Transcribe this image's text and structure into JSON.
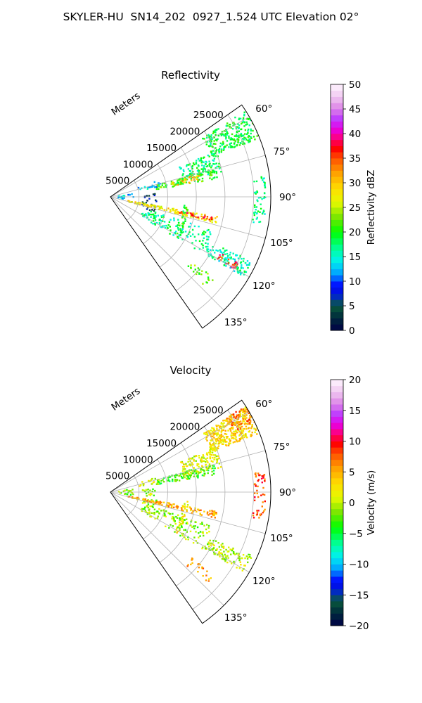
{
  "title": "SKYLER-HU  SN14_202  0927_1.524 UTC Elevation 02°",
  "chart_data": [
    {
      "type": "heatmap",
      "subtype": "polar-sector-radar-ppi",
      "title": "Reflectivity",
      "range_label": "Meters",
      "range_ticks": [
        "5000",
        "10000",
        "15000",
        "20000",
        "25000"
      ],
      "range_tick_values": [
        5000,
        10000,
        15000,
        20000,
        25000
      ],
      "rmax": 28000,
      "azimuth_ticks": [
        "60°",
        "75°",
        "90°",
        "105°",
        "120°",
        "135°"
      ],
      "azimuth_tick_values": [
        60,
        75,
        90,
        105,
        120,
        135
      ],
      "theta_range": [
        55,
        145
      ],
      "grid": true,
      "colorbar": {
        "label": "Reflectivity dBZ",
        "vmin": 0,
        "vmax": 50,
        "ticks": [
          "0",
          "5",
          "10",
          "15",
          "20",
          "25",
          "30",
          "35",
          "40",
          "45",
          "50"
        ],
        "tick_values": [
          0,
          5,
          10,
          15,
          20,
          25,
          30,
          35,
          40,
          45,
          50
        ]
      },
      "echo_regions": [
        {
          "az": [
            57,
            68
          ],
          "r": [
            19000,
            28000
          ],
          "value": 19,
          "density": 0.55
        },
        {
          "az": [
            66,
            77
          ],
          "r": [
            13000,
            20000
          ],
          "value": 18,
          "density": 0.45
        },
        {
          "az": [
            74,
            80
          ],
          "r": [
            8000,
            19000
          ],
          "value": 21,
          "density": 0.55
        },
        {
          "az": [
            75,
            79
          ],
          "r": [
            11000,
            16000
          ],
          "value": 30,
          "density": 0.5
        },
        {
          "az": [
            70,
            78
          ],
          "r": [
            5000,
            9000
          ],
          "value": 13,
          "density": 0.35
        },
        {
          "az": [
            78,
            96
          ],
          "r": [
            1000,
            4000
          ],
          "value": 13,
          "density": 0.35
        },
        {
          "az": [
            84,
            108
          ],
          "r": [
            5500,
            8000
          ],
          "value": 5,
          "density": 0.4
        },
        {
          "az": [
            100,
            104
          ],
          "r": [
            3000,
            19000
          ],
          "value": 28,
          "density": 0.9
        },
        {
          "az": [
            101,
            103
          ],
          "r": [
            12000,
            18000
          ],
          "value": 36,
          "density": 0.8
        },
        {
          "az": [
            96,
            122
          ],
          "r": [
            12800,
            13600
          ],
          "value": 20,
          "density": 0.6
        },
        {
          "az": [
            82,
            100
          ],
          "r": [
            25000,
            27000
          ],
          "value": 17,
          "density": 0.3
        },
        {
          "az": [
            114,
            121
          ],
          "r": [
            19000,
            27000
          ],
          "value": 16,
          "density": 0.45
        },
        {
          "az": [
            117,
            120
          ],
          "r": [
            21000,
            25000
          ],
          "value": 37,
          "density": 0.45
        },
        {
          "az": [
            108,
            122
          ],
          "r": [
            6000,
            19000
          ],
          "value": 17,
          "density": 0.3
        },
        {
          "az": [
            128,
            134
          ],
          "r": [
            18000,
            23000
          ],
          "value": 22,
          "density": 0.2
        }
      ]
    },
    {
      "type": "heatmap",
      "subtype": "polar-sector-radar-ppi",
      "title": "Velocity",
      "range_label": "Meters",
      "range_ticks": [
        "5000",
        "10000",
        "15000",
        "20000",
        "25000"
      ],
      "range_tick_values": [
        5000,
        10000,
        15000,
        20000,
        25000
      ],
      "rmax": 28000,
      "azimuth_ticks": [
        "60°",
        "75°",
        "90°",
        "105°",
        "120°",
        "135°"
      ],
      "azimuth_tick_values": [
        60,
        75,
        90,
        105,
        120,
        135
      ],
      "theta_range": [
        55,
        145
      ],
      "grid": true,
      "colorbar": {
        "label": "Velocity (m/s)",
        "vmin": -20,
        "vmax": 20,
        "ticks": [
          "−20",
          "−15",
          "−10",
          "−5",
          "0",
          "5",
          "10",
          "15",
          "20"
        ],
        "tick_values": [
          -20,
          -15,
          -10,
          -5,
          0,
          5,
          10,
          15,
          20
        ]
      },
      "echo_regions": [
        {
          "az": [
            57,
            68
          ],
          "r": [
            19000,
            28000
          ],
          "value": 3,
          "density": 0.75
        },
        {
          "az": [
            57,
            64
          ],
          "r": [
            24000,
            28000
          ],
          "value": 7,
          "density": 0.5
        },
        {
          "az": [
            66,
            77
          ],
          "r": [
            13000,
            20000
          ],
          "value": 1,
          "density": 0.55
        },
        {
          "az": [
            74,
            80
          ],
          "r": [
            8000,
            19000
          ],
          "value": -3,
          "density": 0.6
        },
        {
          "az": [
            70,
            78
          ],
          "r": [
            5000,
            9000
          ],
          "value": 1,
          "density": 0.4
        },
        {
          "az": [
            78,
            96
          ],
          "r": [
            1000,
            4000
          ],
          "value": -2,
          "density": 0.35
        },
        {
          "az": [
            84,
            108
          ],
          "r": [
            5500,
            8000
          ],
          "value": -1,
          "density": 0.4
        },
        {
          "az": [
            100,
            104
          ],
          "r": [
            3000,
            19000
          ],
          "value": 5,
          "density": 0.9
        },
        {
          "az": [
            96,
            122
          ],
          "r": [
            12800,
            13600
          ],
          "value": 2,
          "density": 0.6
        },
        {
          "az": [
            82,
            100
          ],
          "r": [
            25000,
            27000
          ],
          "value": 8,
          "density": 0.3
        },
        {
          "az": [
            114,
            121
          ],
          "r": [
            19000,
            27000
          ],
          "value": 0,
          "density": 0.45
        },
        {
          "az": [
            108,
            122
          ],
          "r": [
            6000,
            19000
          ],
          "value": -1,
          "density": 0.3
        },
        {
          "az": [
            128,
            134
          ],
          "r": [
            18000,
            23000
          ],
          "value": 6,
          "density": 0.2
        }
      ]
    }
  ]
}
